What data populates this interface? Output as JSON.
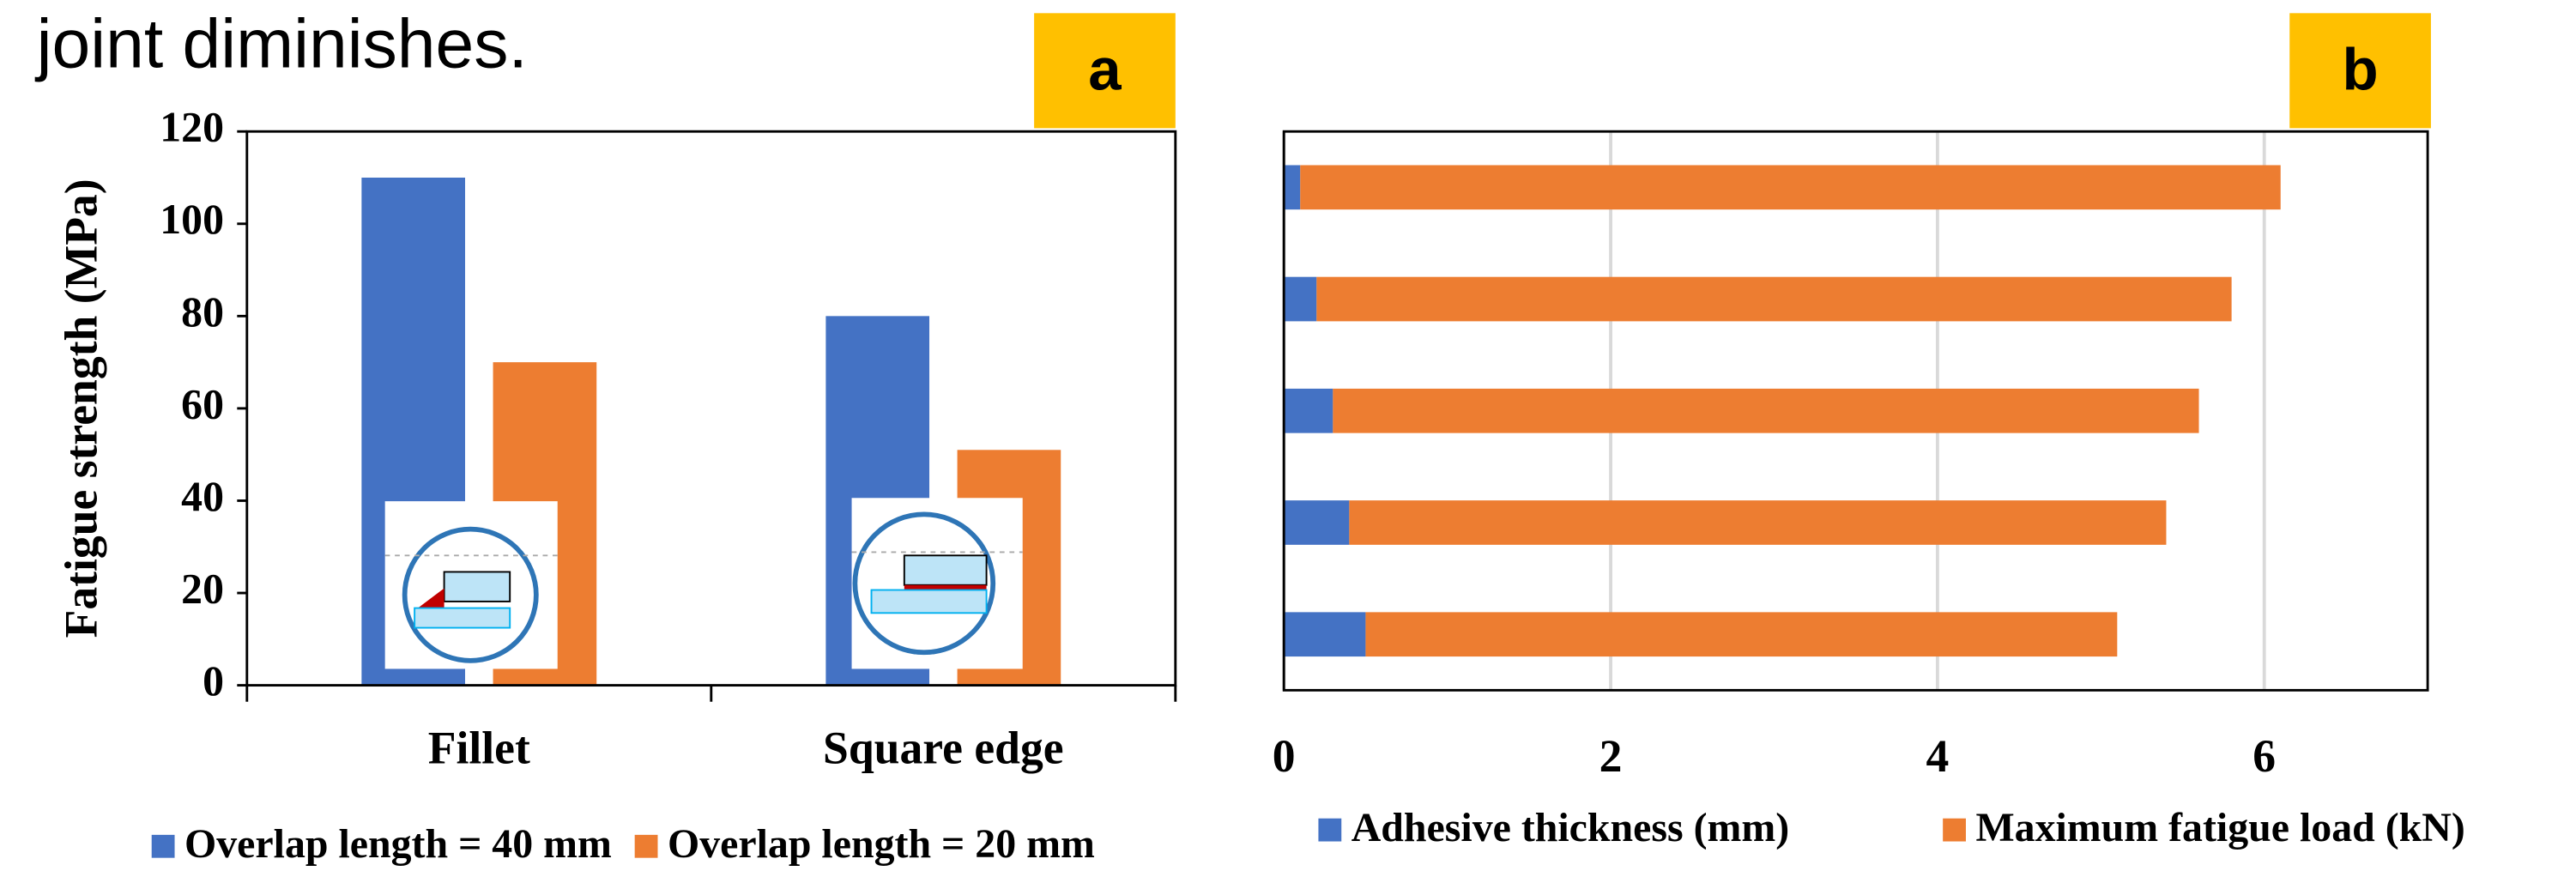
{
  "header": {
    "text": "joint diminishes."
  },
  "chart_data": [
    {
      "type": "bar",
      "panel_label": "a",
      "ylabel": "Fatigue strength (MPa)",
      "categories": [
        "Fillet",
        "Square edge"
      ],
      "series": [
        {
          "name": "Overlap length = 40 mm",
          "color": "#4472c4",
          "values": [
            110,
            80
          ]
        },
        {
          "name": "Overlap length = 20 mm",
          "color": "#ed7d31",
          "values": [
            70,
            51
          ]
        }
      ],
      "ylim": [
        0,
        120
      ],
      "yticks": [
        0,
        20,
        40,
        60,
        80,
        100,
        120
      ],
      "grid": false
    },
    {
      "type": "stacked-barh",
      "panel_label": "b",
      "series": [
        {
          "name": "Adhesive thickness (mm)",
          "color": "#4472c4",
          "values": [
            0.1,
            0.2,
            0.3,
            0.4,
            0.5
          ]
        },
        {
          "name": "Maximum fatigue load (kN)",
          "color": "#ed7d31",
          "values": [
            6.0,
            5.6,
            5.3,
            5.0,
            4.6
          ]
        }
      ],
      "xlim": [
        0,
        7
      ],
      "xticks": [
        0,
        2,
        4,
        6
      ],
      "grid": true
    }
  ]
}
